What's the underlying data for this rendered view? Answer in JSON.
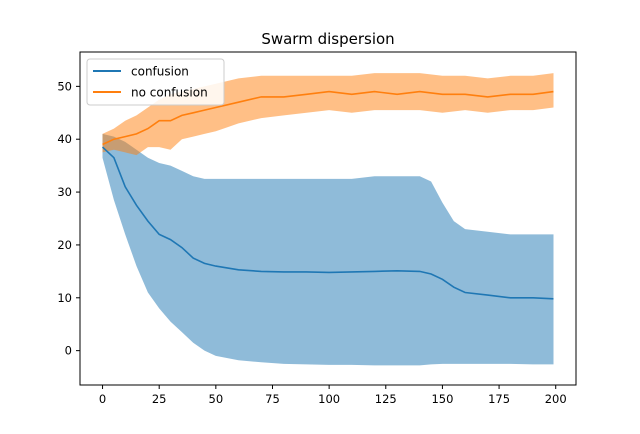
{
  "chart_data": {
    "type": "line",
    "title": "Swarm dispersion",
    "xlabel": "",
    "ylabel": "",
    "xlim": [
      -9.95,
      208.95
    ],
    "ylim": [
      -6.5,
      56.5
    ],
    "xticks": [
      0,
      25,
      50,
      75,
      100,
      125,
      150,
      175,
      200
    ],
    "yticks": [
      0,
      10,
      20,
      30,
      40,
      50
    ],
    "grid": false,
    "legend_position": "upper left",
    "series": [
      {
        "name": "confusion",
        "color": "#1f77b4",
        "band_color": "#1f77b4",
        "x": [
          0,
          5,
          10,
          15,
          20,
          25,
          30,
          35,
          40,
          45,
          50,
          60,
          70,
          80,
          90,
          100,
          110,
          120,
          130,
          140,
          145,
          150,
          155,
          160,
          170,
          180,
          190,
          199
        ],
        "mean": [
          38.5,
          36.5,
          31.0,
          27.5,
          24.5,
          22.0,
          21.0,
          19.5,
          17.5,
          16.5,
          16.0,
          15.3,
          15.0,
          14.9,
          14.9,
          14.8,
          14.9,
          15.0,
          15.1,
          15.0,
          14.5,
          13.5,
          12.0,
          11.0,
          10.5,
          10.0,
          10.0,
          9.8
        ],
        "lower": [
          36.5,
          28.5,
          22.0,
          16.0,
          11.0,
          8.0,
          5.5,
          3.5,
          1.5,
          0.0,
          -1.0,
          -1.8,
          -2.2,
          -2.5,
          -2.6,
          -2.7,
          -2.7,
          -2.8,
          -2.8,
          -2.8,
          -2.6,
          -2.5,
          -2.5,
          -2.5,
          -2.5,
          -2.5,
          -2.6,
          -2.6
        ],
        "upper": [
          41.0,
          40.5,
          39.5,
          38.0,
          36.5,
          35.5,
          35.0,
          34.0,
          33.0,
          32.5,
          32.5,
          32.5,
          32.5,
          32.5,
          32.5,
          32.5,
          32.5,
          33.0,
          33.0,
          33.0,
          32.0,
          28.0,
          24.5,
          23.0,
          22.5,
          22.0,
          22.0,
          22.0
        ]
      },
      {
        "name": "no confusion",
        "color": "#ff7f0e",
        "band_color": "#ff7f0e",
        "x": [
          0,
          5,
          10,
          15,
          20,
          25,
          30,
          35,
          40,
          45,
          50,
          60,
          70,
          80,
          90,
          100,
          110,
          120,
          130,
          140,
          150,
          160,
          170,
          180,
          190,
          199
        ],
        "mean": [
          39.0,
          40.0,
          40.5,
          41.0,
          42.0,
          43.5,
          43.5,
          44.5,
          45.0,
          45.5,
          46.0,
          47.0,
          48.0,
          48.0,
          48.5,
          49.0,
          48.5,
          49.0,
          48.5,
          49.0,
          48.5,
          48.5,
          48.0,
          48.5,
          48.5,
          49.0
        ],
        "lower": [
          37.5,
          38.0,
          37.5,
          37.0,
          38.5,
          38.5,
          38.0,
          40.0,
          40.5,
          41.0,
          41.5,
          43.0,
          44.0,
          44.5,
          45.0,
          45.5,
          45.0,
          45.5,
          45.5,
          45.5,
          45.0,
          45.5,
          45.0,
          45.5,
          45.5,
          46.0
        ],
        "upper": [
          41.0,
          42.0,
          43.5,
          44.5,
          46.0,
          47.5,
          48.5,
          49.0,
          49.5,
          50.0,
          50.5,
          51.5,
          52.0,
          52.0,
          52.0,
          52.0,
          52.0,
          52.5,
          52.5,
          52.5,
          52.0,
          52.0,
          51.5,
          52.0,
          52.0,
          52.5
        ]
      }
    ]
  }
}
